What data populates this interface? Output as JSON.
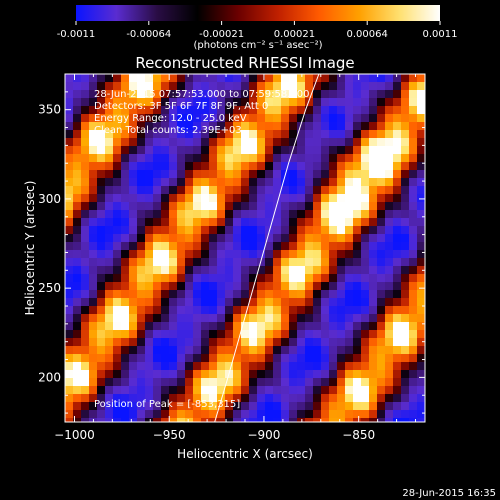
{
  "chart_data": {
    "type": "heatmap",
    "title": "Reconstructed RHESSI Image",
    "xlabel": "Heliocentric X (arcsec)",
    "ylabel": "Heliocentric Y (arcsec)",
    "xlim": [
      -1005,
      -815
    ],
    "ylim": [
      175,
      370
    ],
    "x_ticks": [
      -1000,
      -950,
      -900,
      -850
    ],
    "y_ticks": [
      200,
      250,
      300,
      350
    ],
    "colorbar": {
      "ticks": [
        "-0.0011",
        "-0.00064",
        "-0.00021",
        "0.00021",
        "0.00064",
        "0.0011"
      ],
      "unit_label": "(photons cm⁻² s⁻¹ asec⁻²)",
      "colors": [
        "#0a14ff",
        "#5a2cd0",
        "#2a0d45",
        "#000000",
        "#6a0000",
        "#c02000",
        "#ff5a00",
        "#ffa000",
        "#ffe070",
        "#ffffff"
      ]
    },
    "info_lines": [
      "28-Jun-2015 07:57:53.000 to 07:59:58.000",
      "Detectors: 3F 5F 6F 7F 8F 9F, Att 0",
      "Energy Range: 12.0 - 25.0 keV",
      "Clean    Total counts: 2.39E+03"
    ],
    "peak_text": "Position of Peak = [-853,315]",
    "limb_curve": [
      [
        -926,
        175
      ],
      [
        -919,
        200
      ],
      [
        -911,
        230
      ],
      [
        -903,
        260
      ],
      [
        -895,
        290
      ],
      [
        -887,
        320
      ],
      [
        -878,
        350
      ],
      [
        -871,
        370
      ]
    ]
  },
  "timestamp": "28-Jun-2015 16:35"
}
